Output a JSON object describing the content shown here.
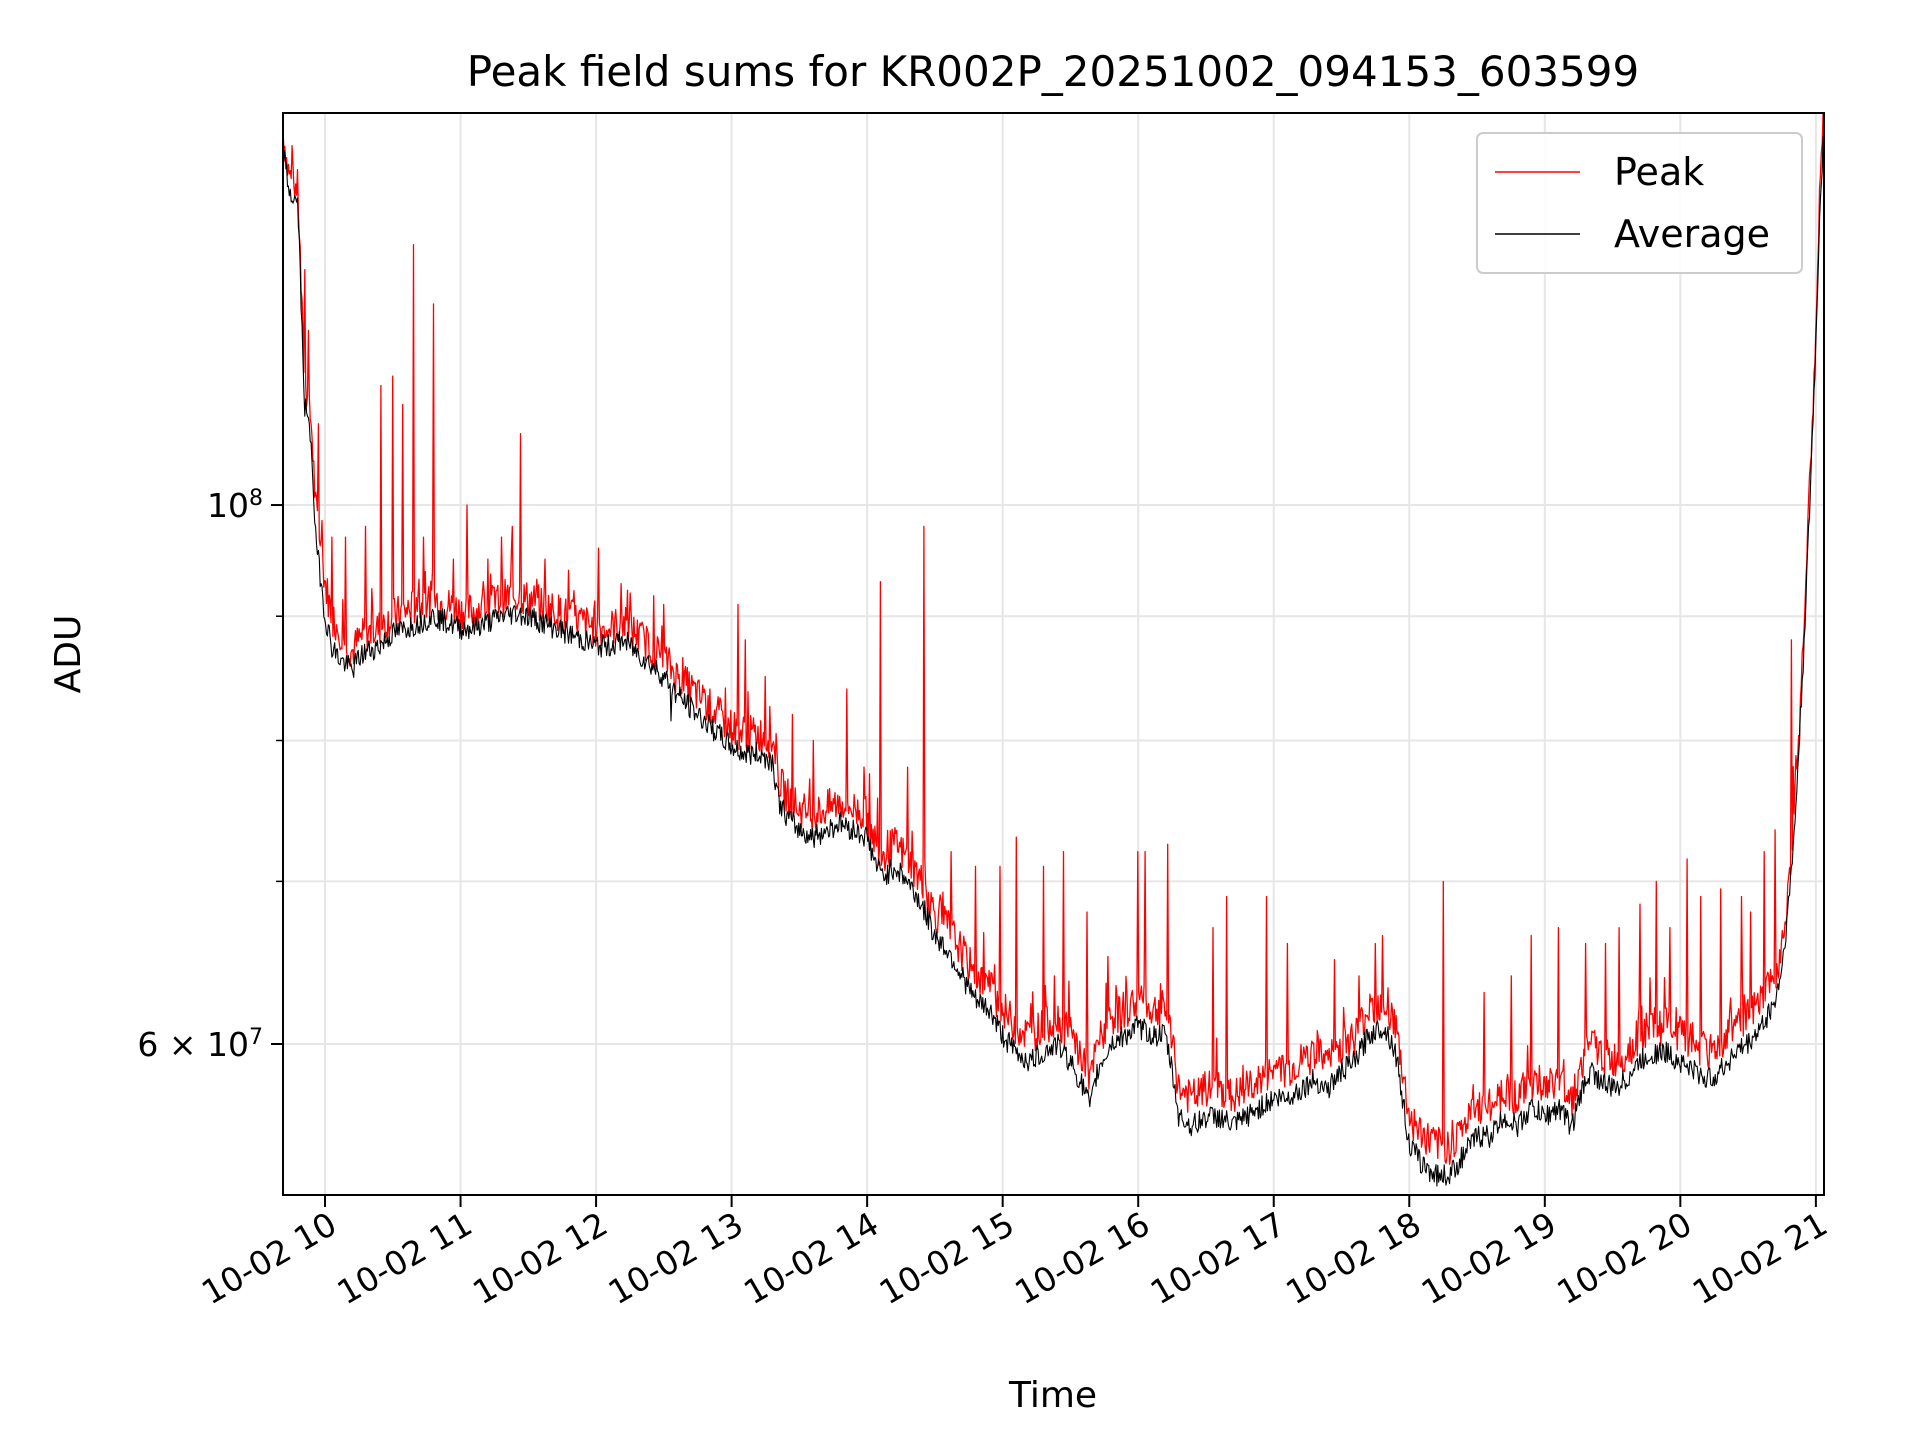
{
  "chart_data": {
    "type": "line",
    "title": "Peak field sums for KR002P_20251002_094153_603599",
    "xlabel": "Time",
    "ylabel": "ADU",
    "yscale": "log",
    "ylim": [
      52000000,
      145000000
    ],
    "xlim": [
      9.69,
      21.06
    ],
    "grid": true,
    "legend_position": "top-right",
    "x_ticks": [
      {
        "value": 10,
        "label": "10-02 10"
      },
      {
        "value": 11,
        "label": "10-02 11"
      },
      {
        "value": 12,
        "label": "10-02 12"
      },
      {
        "value": 13,
        "label": "10-02 13"
      },
      {
        "value": 14,
        "label": "10-02 14"
      },
      {
        "value": 15,
        "label": "10-02 15"
      },
      {
        "value": 16,
        "label": "10-02 16"
      },
      {
        "value": 17,
        "label": "10-02 17"
      },
      {
        "value": 18,
        "label": "10-02 18"
      },
      {
        "value": 19,
        "label": "10-02 19"
      },
      {
        "value": 20,
        "label": "10-02 20"
      },
      {
        "value": 21,
        "label": "10-02 21"
      }
    ],
    "y_major_ticks": [
      {
        "value": 100000000,
        "base": "10",
        "exp": "8"
      },
      {
        "value": 60000000,
        "base": "6 × 10",
        "exp": "7"
      }
    ],
    "y_minor_ticks": [
      70000000,
      80000000,
      90000000
    ],
    "series": [
      {
        "name": "Peak",
        "color": "#ff0000",
        "x": [
          9.69,
          9.72,
          9.75,
          9.8,
          9.83,
          9.85,
          9.9,
          9.93,
          9.97,
          10.0,
          10.05,
          10.1,
          10.15,
          10.2,
          10.25,
          10.3,
          10.4,
          10.5,
          10.6,
          10.7,
          10.8,
          10.9,
          11.0,
          11.1,
          11.2,
          11.3,
          11.4,
          11.5,
          11.6,
          11.7,
          11.8,
          11.9,
          12.0,
          12.1,
          12.2,
          12.3,
          12.4,
          12.5,
          12.6,
          12.7,
          12.8,
          12.9,
          13.0,
          13.1,
          13.2,
          13.3,
          13.35,
          13.4,
          13.5,
          13.6,
          13.7,
          13.8,
          13.9,
          14.0,
          14.05,
          14.1,
          14.15,
          14.2,
          14.3,
          14.4,
          14.45,
          14.5,
          14.6,
          14.7,
          14.8,
          14.9,
          15.0,
          15.1,
          15.2,
          15.3,
          15.4,
          15.5,
          15.6,
          15.65,
          15.7,
          15.8,
          15.9,
          16.0,
          16.1,
          16.2,
          16.25,
          16.3,
          16.4,
          16.5,
          16.6,
          16.7,
          16.8,
          16.9,
          17.0,
          17.1,
          17.2,
          17.3,
          17.4,
          17.5,
          17.6,
          17.7,
          17.8,
          17.85,
          17.9,
          18.0,
          18.1,
          18.2,
          18.3,
          18.4,
          18.5,
          18.6,
          18.7,
          18.8,
          18.9,
          19.0,
          19.1,
          19.2,
          19.3,
          19.35,
          19.4,
          19.5,
          19.6,
          19.7,
          19.8,
          19.9,
          20.0,
          20.1,
          20.2,
          20.3,
          20.4,
          20.5,
          20.6,
          20.7,
          20.75,
          20.8,
          20.85,
          20.9,
          20.95,
          21.0,
          21.03,
          21.06
        ],
        "y": [
          143000000,
          138000000,
          136000000,
          135000000,
          120000000,
          112000000,
          108000000,
          100000000,
          96000000,
          93000000,
          90000000,
          89000000,
          88000000,
          87000000,
          88000000,
          88500000,
          89000000,
          90000000,
          90500000,
          91000000,
          91500000,
          91000000,
          90500000,
          90500000,
          91000000,
          91500000,
          91800000,
          91500000,
          91000000,
          90500000,
          90000000,
          89500000,
          89000000,
          89000000,
          89500000,
          88500000,
          87500000,
          86500000,
          85000000,
          84000000,
          83000000,
          82000000,
          81000000,
          80500000,
          80500000,
          80000000,
          77000000,
          76000000,
          75000000,
          74500000,
          75000000,
          75500000,
          75000000,
          74500000,
          73000000,
          72000000,
          72000000,
          72500000,
          71500000,
          70000000,
          69000000,
          68000000,
          67000000,
          65500000,
          64000000,
          63500000,
          62000000,
          61000000,
          60500000,
          61000000,
          61500000,
          60500000,
          59000000,
          58000000,
          60000000,
          61500000,
          62000000,
          62500000,
          62000000,
          62000000,
          60000000,
          57500000,
          57000000,
          57500000,
          57500000,
          57000000,
          57500000,
          58000000,
          58500000,
          58500000,
          59000000,
          59500000,
          59000000,
          60000000,
          60500000,
          62000000,
          62500000,
          62000000,
          61000000,
          56000000,
          55000000,
          54500000,
          54500000,
          55500000,
          56500000,
          56500000,
          57500000,
          57000000,
          58000000,
          57500000,
          58000000,
          57000000,
          59500000,
          60000000,
          59500000,
          59000000,
          59500000,
          60500000,
          61000000,
          61000000,
          60500000,
          60000000,
          59500000,
          60000000,
          61000000,
          61500000,
          62500000,
          64000000,
          66000000,
          70000000,
          76000000,
          86000000,
          100000000,
          118000000,
          135000000,
          145000000
        ],
        "spikes": [
          {
            "x": 9.85,
            "y": 125000000
          },
          {
            "x": 9.88,
            "y": 118000000
          },
          {
            "x": 9.95,
            "y": 108000000
          },
          {
            "x": 10.05,
            "y": 97000000
          },
          {
            "x": 10.15,
            "y": 97000000
          },
          {
            "x": 10.3,
            "y": 98000000
          },
          {
            "x": 10.41,
            "y": 112000000
          },
          {
            "x": 10.5,
            "y": 113000000
          },
          {
            "x": 10.57,
            "y": 110000000
          },
          {
            "x": 10.65,
            "y": 128000000
          },
          {
            "x": 10.73,
            "y": 97000000
          },
          {
            "x": 10.8,
            "y": 121000000
          },
          {
            "x": 10.95,
            "y": 95000000
          },
          {
            "x": 11.05,
            "y": 100000000
          },
          {
            "x": 11.2,
            "y": 95000000
          },
          {
            "x": 11.3,
            "y": 97000000
          },
          {
            "x": 11.38,
            "y": 98000000
          },
          {
            "x": 11.44,
            "y": 107000000
          },
          {
            "x": 11.62,
            "y": 95000000
          },
          {
            "x": 11.8,
            "y": 94000000
          },
          {
            "x": 12.02,
            "y": 96000000
          },
          {
            "x": 12.25,
            "y": 92000000
          },
          {
            "x": 12.5,
            "y": 91000000
          },
          {
            "x": 13.05,
            "y": 91000000
          },
          {
            "x": 13.1,
            "y": 88000000
          },
          {
            "x": 13.25,
            "y": 85000000
          },
          {
            "x": 13.45,
            "y": 82000000
          },
          {
            "x": 13.6,
            "y": 80000000
          },
          {
            "x": 13.85,
            "y": 84000000
          },
          {
            "x": 13.98,
            "y": 78000000
          },
          {
            "x": 14.1,
            "y": 93000000
          },
          {
            "x": 14.3,
            "y": 78000000
          },
          {
            "x": 14.42,
            "y": 98000000
          },
          {
            "x": 14.62,
            "y": 72000000
          },
          {
            "x": 14.8,
            "y": 71000000
          },
          {
            "x": 14.98,
            "y": 71000000
          },
          {
            "x": 15.1,
            "y": 73000000
          },
          {
            "x": 15.3,
            "y": 71000000
          },
          {
            "x": 15.45,
            "y": 72000000
          },
          {
            "x": 15.62,
            "y": 68000000
          },
          {
            "x": 16.0,
            "y": 72000000
          },
          {
            "x": 16.05,
            "y": 72000000
          },
          {
            "x": 16.22,
            "y": 72500000
          },
          {
            "x": 16.55,
            "y": 67000000
          },
          {
            "x": 16.65,
            "y": 69000000
          },
          {
            "x": 16.95,
            "y": 69000000
          },
          {
            "x": 17.1,
            "y": 66000000
          },
          {
            "x": 17.45,
            "y": 65000000
          },
          {
            "x": 17.63,
            "y": 64000000
          },
          {
            "x": 17.75,
            "y": 66000000
          },
          {
            "x": 17.8,
            "y": 66500000
          },
          {
            "x": 18.25,
            "y": 70000000
          },
          {
            "x": 18.55,
            "y": 63000000
          },
          {
            "x": 18.75,
            "y": 64000000
          },
          {
            "x": 18.9,
            "y": 66500000
          },
          {
            "x": 19.1,
            "y": 67000000
          },
          {
            "x": 19.3,
            "y": 66000000
          },
          {
            "x": 19.45,
            "y": 66000000
          },
          {
            "x": 19.55,
            "y": 67000000
          },
          {
            "x": 19.7,
            "y": 68500000
          },
          {
            "x": 19.82,
            "y": 70000000
          },
          {
            "x": 19.92,
            "y": 67000000
          },
          {
            "x": 20.05,
            "y": 71500000
          },
          {
            "x": 20.15,
            "y": 69000000
          },
          {
            "x": 20.3,
            "y": 69500000
          },
          {
            "x": 20.45,
            "y": 69000000
          },
          {
            "x": 20.52,
            "y": 68000000
          },
          {
            "x": 20.62,
            "y": 72000000
          },
          {
            "x": 20.7,
            "y": 73500000
          },
          {
            "x": 20.82,
            "y": 88000000
          },
          {
            "x": 20.88,
            "y": 80000000
          }
        ]
      },
      {
        "name": "Average",
        "color": "#000000",
        "x": [
          9.69,
          9.72,
          9.75,
          9.8,
          9.83,
          9.85,
          9.9,
          9.93,
          9.97,
          10.0,
          10.05,
          10.1,
          10.15,
          10.2,
          10.25,
          10.3,
          10.4,
          10.5,
          10.6,
          10.7,
          10.8,
          10.9,
          11.0,
          11.1,
          11.2,
          11.3,
          11.4,
          11.5,
          11.6,
          11.7,
          11.8,
          11.9,
          12.0,
          12.1,
          12.2,
          12.3,
          12.4,
          12.5,
          12.6,
          12.7,
          12.8,
          12.9,
          13.0,
          13.1,
          13.2,
          13.3,
          13.35,
          13.4,
          13.5,
          13.6,
          13.7,
          13.8,
          13.9,
          14.0,
          14.05,
          14.1,
          14.15,
          14.2,
          14.3,
          14.4,
          14.45,
          14.5,
          14.6,
          14.7,
          14.8,
          14.9,
          15.0,
          15.1,
          15.2,
          15.3,
          15.4,
          15.5,
          15.6,
          15.65,
          15.7,
          15.8,
          15.9,
          16.0,
          16.1,
          16.2,
          16.25,
          16.3,
          16.4,
          16.5,
          16.6,
          16.7,
          16.8,
          16.9,
          17.0,
          17.1,
          17.2,
          17.3,
          17.4,
          17.5,
          17.6,
          17.7,
          17.8,
          17.85,
          17.9,
          18.0,
          18.1,
          18.2,
          18.3,
          18.4,
          18.5,
          18.6,
          18.7,
          18.8,
          18.9,
          19.0,
          19.1,
          19.2,
          19.3,
          19.35,
          19.4,
          19.5,
          19.6,
          19.7,
          19.8,
          19.9,
          20.0,
          20.1,
          20.2,
          20.3,
          20.4,
          20.5,
          20.6,
          20.7,
          20.75,
          20.8,
          20.85,
          20.9,
          20.95,
          21.0,
          21.03,
          21.06
        ],
        "y": [
          141000000,
          136000000,
          134000000,
          133000000,
          118000000,
          110000000,
          106000000,
          97000000,
          93000000,
          90000000,
          87500000,
          86500000,
          86000000,
          85500000,
          86500000,
          87000000,
          87500000,
          88500000,
          89000000,
          89500000,
          90000000,
          89500000,
          89000000,
          89000000,
          89500000,
          90000000,
          90300000,
          90000000,
          89500000,
          89000000,
          88500000,
          88000000,
          87500000,
          87500000,
          88000000,
          87000000,
          86000000,
          85000000,
          83500000,
          82500000,
          81500000,
          80500000,
          79500000,
          79000000,
          79000000,
          78500000,
          75500000,
          74500000,
          73500000,
          73000000,
          73500000,
          74000000,
          73500000,
          73000000,
          71500000,
          70500000,
          70500000,
          71000000,
          70000000,
          68500000,
          67500000,
          66500000,
          65500000,
          64000000,
          62500000,
          62000000,
          60500000,
          59500000,
          59000000,
          59500000,
          60000000,
          59000000,
          57500000,
          56500000,
          58500000,
          60000000,
          60500000,
          61000000,
          60500000,
          60500000,
          58500000,
          56000000,
          55500000,
          56000000,
          56000000,
          55500000,
          56000000,
          56500000,
          57000000,
          57000000,
          57500000,
          58000000,
          57500000,
          58500000,
          59000000,
          60500000,
          61000000,
          60500000,
          59500000,
          54500000,
          53500000,
          53000000,
          53000000,
          54000000,
          55000000,
          55000000,
          56000000,
          55500000,
          56500000,
          56000000,
          56500000,
          55500000,
          58000000,
          58500000,
          58000000,
          57500000,
          58000000,
          59000000,
          59500000,
          59500000,
          59000000,
          58500000,
          58000000,
          58500000,
          59500000,
          60000000,
          61000000,
          62500000,
          64500000,
          68500000,
          74500000,
          84500000,
          98000000,
          116000000,
          133000000,
          143000000
        ],
        "spikes": [
          {
            "x": 12.55,
            "y": 81500000
          }
        ]
      }
    ]
  }
}
